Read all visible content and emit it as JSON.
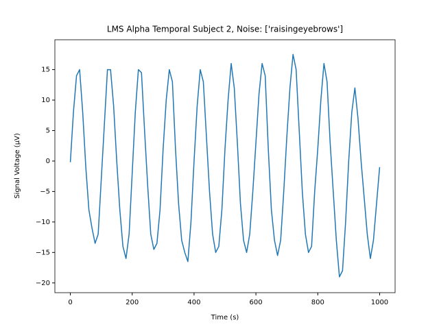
{
  "chart_data": {
    "type": "line",
    "title": "LMS Alpha Temporal Subject 2, Noise: ['raisingeyebrows']",
    "x_label": "Time (s)",
    "y_label": "Signal Voltage (μV)",
    "x": [
      0,
      10,
      20,
      30,
      40,
      50,
      60,
      70,
      80,
      90,
      100,
      110,
      120,
      130,
      140,
      150,
      160,
      170,
      180,
      190,
      200,
      210,
      220,
      230,
      240,
      250,
      260,
      270,
      280,
      290,
      300,
      310,
      320,
      330,
      340,
      350,
      360,
      370,
      380,
      390,
      400,
      410,
      420,
      430,
      440,
      450,
      460,
      470,
      480,
      490,
      500,
      510,
      520,
      530,
      540,
      550,
      560,
      570,
      580,
      590,
      600,
      610,
      620,
      630,
      640,
      650,
      660,
      670,
      680,
      690,
      700,
      710,
      720,
      730,
      740,
      750,
      760,
      770,
      780,
      790,
      800,
      810,
      820,
      830,
      840,
      850,
      860,
      870,
      880,
      890,
      900,
      910,
      920,
      930,
      940,
      950,
      960,
      970,
      980,
      990,
      1000
    ],
    "series": [
      {
        "color": "#1f77b4",
        "values": [
          -0.2,
          8,
          14,
          15,
          8,
          -1,
          -8,
          -11,
          -13.5,
          -12,
          -3,
          6,
          15,
          15,
          9,
          0,
          -8,
          -14,
          -16,
          -12,
          -2,
          8,
          15,
          14.5,
          5,
          -4,
          -12,
          -14.5,
          -13.5,
          -8,
          2,
          10,
          15,
          13,
          2,
          -7,
          -13,
          -15,
          -16.5,
          -10,
          0,
          9,
          15,
          13,
          4,
          -5,
          -12,
          -15,
          -14,
          -8,
          2,
          10,
          16,
          12,
          3,
          -7,
          -13,
          -15,
          -12,
          -5,
          3,
          11,
          16,
          14,
          2,
          -8,
          -13,
          -15.5,
          -13,
          -5,
          4,
          12,
          17.5,
          15,
          5,
          -5,
          -12,
          -15,
          -14,
          -5,
          2,
          10,
          16,
          13,
          3,
          -5,
          -13,
          -19,
          -18,
          -10,
          0,
          8,
          12,
          7,
          0,
          -6,
          -12,
          -16,
          -13,
          -7,
          -1
        ]
      }
    ],
    "xlim": [
      -50,
      1050
    ],
    "ylim": [
      -21.6,
      19.9
    ],
    "xticks": [
      0,
      200,
      400,
      600,
      800,
      1000
    ],
    "yticks": [
      {
        "value": -20,
        "label": "−20"
      },
      {
        "value": -15,
        "label": "−15"
      },
      {
        "value": -10,
        "label": "−10"
      },
      {
        "value": -5,
        "label": "−5"
      },
      0,
      5,
      10,
      15
    ]
  }
}
